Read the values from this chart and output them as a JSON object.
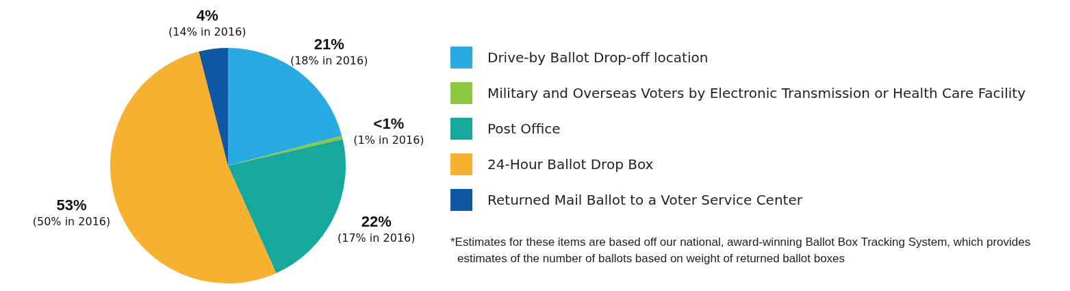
{
  "chart_data": {
    "type": "pie",
    "categories": [
      "Drive-by Ballot Drop-off location",
      "Military and Overseas Voters by Electronic Transmission or Health Care Facility",
      "Post Office",
      "24-Hour Ballot Drop Box",
      "Returned Mail Ballot to a Voter Service Center"
    ],
    "values": [
      21,
      0.5,
      22,
      53,
      4
    ],
    "value_labels": [
      "21%",
      "<1%",
      "22%",
      "53%",
      "4%"
    ],
    "colors": [
      "#29abe2",
      "#8dc63f",
      "#16a89d",
      "#f7b030",
      "#0f57a3"
    ],
    "legend": "right",
    "annotations": [
      "(18% in 2016)",
      "(1% in 2016)",
      "(17% in 2016)",
      "(50% in 2016)",
      "(14% in 2016)",
      "*Estimates for these items are based off our national, award-winning Ballot Box Tracking System, which provides estimates of the number of ballots based on weight of returned ballot boxes"
    ]
  }
}
